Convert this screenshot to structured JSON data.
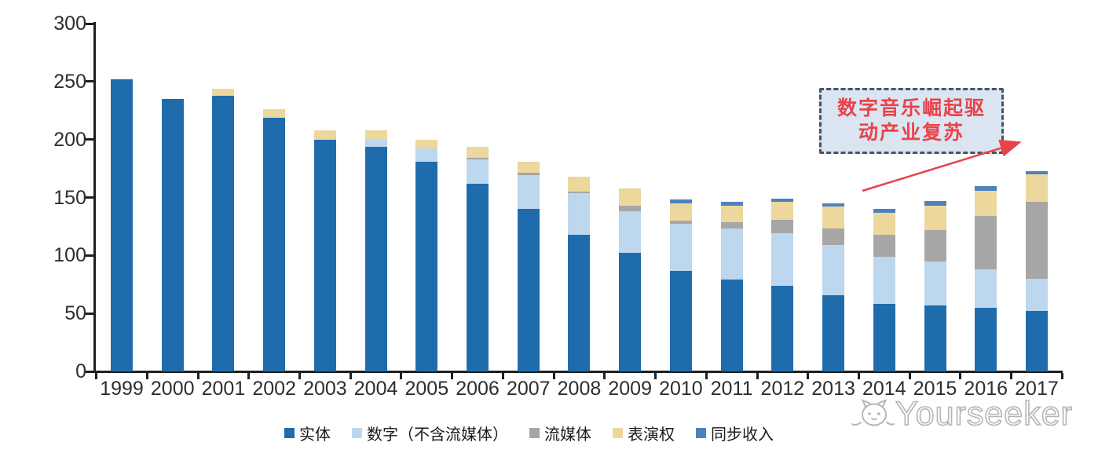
{
  "chart_data": {
    "type": "bar",
    "stacked": true,
    "title": "",
    "xlabel": "",
    "ylabel": "",
    "categories": [
      "1999",
      "2000",
      "2001",
      "2002",
      "2003",
      "2004",
      "2005",
      "2006",
      "2007",
      "2008",
      "2009",
      "2010",
      "2011",
      "2012",
      "2013",
      "2014",
      "2015",
      "2016",
      "2017"
    ],
    "series": [
      {
        "name": "实体",
        "color": "#1f6cad",
        "values": [
          252,
          235,
          238,
          219,
          200,
          194,
          181,
          162,
          140,
          118,
          102,
          87,
          79,
          74,
          66,
          58,
          57,
          55,
          52
        ]
      },
      {
        "name": "数字（不含流媒体）",
        "color": "#bdd7ee",
        "values": [
          0,
          0,
          0,
          0,
          0,
          6,
          11,
          21,
          29,
          36,
          36,
          40,
          44,
          45,
          43,
          41,
          38,
          33,
          28
        ]
      },
      {
        "name": "流媒体",
        "color": "#a6a6a6",
        "values": [
          0,
          0,
          0,
          0,
          0,
          0,
          0,
          1,
          2,
          1,
          5,
          3,
          6,
          12,
          14,
          19,
          27,
          46,
          66
        ]
      },
      {
        "name": "表演权",
        "color": "#ecd79c",
        "values": [
          0,
          0,
          6,
          7,
          8,
          8,
          8,
          10,
          10,
          13,
          15,
          15,
          14,
          15,
          19,
          19,
          21,
          22,
          24
        ]
      },
      {
        "name": "同步收入",
        "color": "#4f81bd",
        "values": [
          0,
          0,
          0,
          0,
          0,
          0,
          0,
          0,
          0,
          0,
          0,
          3,
          3,
          3,
          3,
          3,
          4,
          4,
          3
        ]
      }
    ],
    "totals": [
      252,
      235,
      244,
      226,
      208,
      208,
      200,
      194,
      181,
      168,
      158,
      148,
      146,
      149,
      145,
      140,
      147,
      160,
      173
    ],
    "ylim": [
      0,
      300
    ],
    "yticks": [
      0,
      50,
      100,
      150,
      200,
      250,
      300
    ],
    "grid": false,
    "legend_position": "bottom",
    "axis_color": "#1f1f1f",
    "tick_label_color": "#2e2e2e"
  },
  "annotation": {
    "line1": "数字音乐崛起驱",
    "line2": "动产业复苏",
    "text_color": "#e8434a",
    "box_fill": "#dbe5f2",
    "box_border_color": "#44546a",
    "arrow_color": "#e8434a"
  },
  "watermark": {
    "brand": "Yourseeker",
    "logo": "cat-face-icon",
    "color": "#b5b5b5"
  }
}
